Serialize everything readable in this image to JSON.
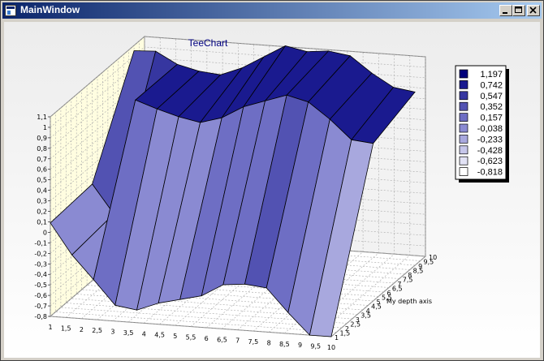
{
  "window": {
    "title": "MainWindow"
  },
  "titlebar_buttons": {
    "minimize": "minimize-icon",
    "maximize": "maximize-icon",
    "close": "close-icon"
  },
  "chart_data": {
    "type": "surface",
    "title": "TeeChart",
    "xlabel": "",
    "ylabel": "",
    "depth_label": "My depth axis",
    "x": [
      1,
      1.5,
      2,
      2.5,
      3,
      3.5,
      4,
      4.5,
      5,
      5.5,
      6,
      6.5,
      7,
      7.5,
      8,
      8.5,
      9,
      9.5,
      10
    ],
    "z": [
      1,
      1.5,
      2,
      2.5,
      3,
      3.5,
      4,
      4.5,
      5,
      5.5,
      6,
      6.5,
      7,
      7.5,
      8,
      8.5,
      9,
      9.5,
      10
    ],
    "ylim": [
      -0.8,
      1.1
    ],
    "x_tick_labels": [
      "1",
      "1,5",
      "2",
      "2,5",
      "3",
      "3,5",
      "4",
      "4,5",
      "5",
      "5,5",
      "6",
      "6,5",
      "7",
      "7,5",
      "8",
      "8,5",
      "9",
      "9,5",
      "10"
    ],
    "y_tick_labels": [
      "1,1",
      "1",
      "0,9",
      "0,8",
      "0,7",
      "0,6",
      "0,5",
      "0,4",
      "0,3",
      "0,2",
      "0,1",
      "0",
      "-0,1",
      "-0,2",
      "-0,3",
      "-0,4",
      "-0,5",
      "-0,6",
      "-0,7",
      "-0,8"
    ],
    "depth_tick_labels": [
      "1",
      "1,5",
      "2",
      "2,5",
      "3",
      "3,5",
      "4",
      "4,5",
      "5",
      "5,5",
      "6",
      "6,5",
      "7",
      "7,5",
      "8",
      "8,5",
      "9",
      "9,5",
      "10"
    ],
    "grid": true,
    "legend_position": "right",
    "legend": [
      {
        "label": "1,197",
        "color": "#00007b"
      },
      {
        "label": "0,742",
        "color": "#1a1a8f"
      },
      {
        "label": "0,547",
        "color": "#3636a0"
      },
      {
        "label": "0,352",
        "color": "#5252b2"
      },
      {
        "label": "0,157",
        "color": "#6e6ec4"
      },
      {
        "label": "-0,038",
        "color": "#8a8ad2"
      },
      {
        "label": "-0,233",
        "color": "#a8a8de"
      },
      {
        "label": "-0,428",
        "color": "#c6c6ea"
      },
      {
        "label": "-0,623",
        "color": "#e2e2f5"
      },
      {
        "label": "-0,818",
        "color": "#ffffff"
      }
    ],
    "surface_rows": [
      {
        "depth": 1,
        "values": [
          0.09,
          -0.2,
          -0.42,
          -0.65,
          -0.68,
          -0.6,
          -0.55,
          -0.5,
          -0.38,
          -0.36,
          -0.38,
          -0.6,
          -0.8,
          -0.8
        ]
      },
      {
        "depth": 5,
        "values": [
          0.12,
          -0.15,
          0.95,
          0.88,
          0.82,
          0.78,
          0.84,
          0.96,
          1.03,
          1.1,
          1.05,
          0.9,
          0.72,
          0.7
        ]
      },
      {
        "depth": 9,
        "values": [
          1.05,
          1.06,
          0.95,
          0.9,
          0.88,
          0.96,
          1.08,
          1.2,
          1.16,
          1.18,
          1.15,
          1.0,
          0.88,
          0.85
        ]
      }
    ],
    "colors": {
      "wall_left": "#fffde0",
      "wall_back": "#f2f2f2",
      "grid": "#a8a8a8",
      "title": "#000080"
    }
  }
}
